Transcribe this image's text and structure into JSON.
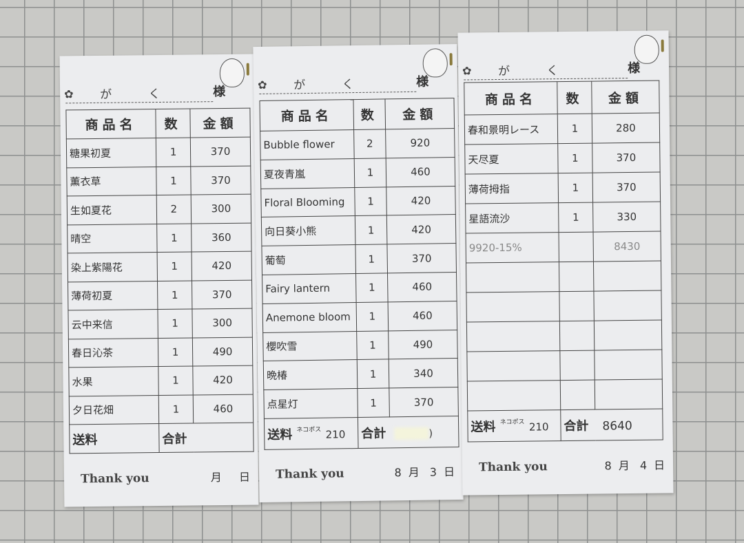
{
  "headers": {
    "name": "商品名",
    "qty": "数",
    "amount": "金額"
  },
  "labels": {
    "honorific": "様",
    "shipping": "送料",
    "total": "合計",
    "thanks": "Thank you",
    "month": "月",
    "day": "日"
  },
  "receipts": [
    {
      "customer": "が く",
      "items": [
        {
          "name": "糖果初夏",
          "qty": "1",
          "amount": "370"
        },
        {
          "name": "薫衣草",
          "qty": "1",
          "amount": "370"
        },
        {
          "name": "生如夏花",
          "qty": "2",
          "amount": "300"
        },
        {
          "name": "晴空",
          "qty": "1",
          "amount": "360"
        },
        {
          "name": "染上紫陽花",
          "qty": "1",
          "amount": "420"
        },
        {
          "name": "薄荷初夏",
          "qty": "1",
          "amount": "370"
        },
        {
          "name": "云中来信",
          "qty": "1",
          "amount": "300"
        },
        {
          "name": "春日沁茶",
          "qty": "1",
          "amount": "490"
        },
        {
          "name": "水果",
          "qty": "1",
          "amount": "420"
        },
        {
          "name": "夕日花畑",
          "qty": "1",
          "amount": "460"
        }
      ],
      "shipping_note": "",
      "shipping": "",
      "total": "",
      "month": "",
      "day": ""
    },
    {
      "customer": "が く",
      "items": [
        {
          "name": "Bubble flower",
          "qty": "2",
          "amount": "920"
        },
        {
          "name": "夏夜青嵐",
          "qty": "1",
          "amount": "460"
        },
        {
          "name": "Floral Blooming",
          "qty": "1",
          "amount": "420"
        },
        {
          "name": "向日葵小熊",
          "qty": "1",
          "amount": "420"
        },
        {
          "name": "葡萄",
          "qty": "1",
          "amount": "370"
        },
        {
          "name": "Fairy lantern",
          "qty": "1",
          "amount": "460"
        },
        {
          "name": "Anemone bloom",
          "qty": "1",
          "amount": "460"
        },
        {
          "name": "櫻吹雪",
          "qty": "1",
          "amount": "490"
        },
        {
          "name": "晩椿",
          "qty": "1",
          "amount": "340"
        },
        {
          "name": "点星灯",
          "qty": "1",
          "amount": "370"
        }
      ],
      "shipping_note": "ネコポス",
      "shipping": "210",
      "total": ")",
      "total_obscured": true,
      "month": "8",
      "day": "3"
    },
    {
      "customer": "が く",
      "items": [
        {
          "name": "春和景明レース",
          "qty": "1",
          "amount": "280"
        },
        {
          "name": "天尽夏",
          "qty": "1",
          "amount": "370"
        },
        {
          "name": "薄荷拇指",
          "qty": "1",
          "amount": "370"
        },
        {
          "name": "星語流沙",
          "qty": "1",
          "amount": "330"
        },
        {
          "name": "9920-15%",
          "qty": "",
          "amount": "8430",
          "discount": true
        },
        {
          "name": "",
          "qty": "",
          "amount": ""
        },
        {
          "name": "",
          "qty": "",
          "amount": ""
        },
        {
          "name": "",
          "qty": "",
          "amount": ""
        },
        {
          "name": "",
          "qty": "",
          "amount": ""
        },
        {
          "name": "",
          "qty": "",
          "amount": ""
        }
      ],
      "shipping_note": "ネコポス",
      "shipping": "210",
      "total": "8640",
      "month": "8",
      "day": "4"
    }
  ]
}
